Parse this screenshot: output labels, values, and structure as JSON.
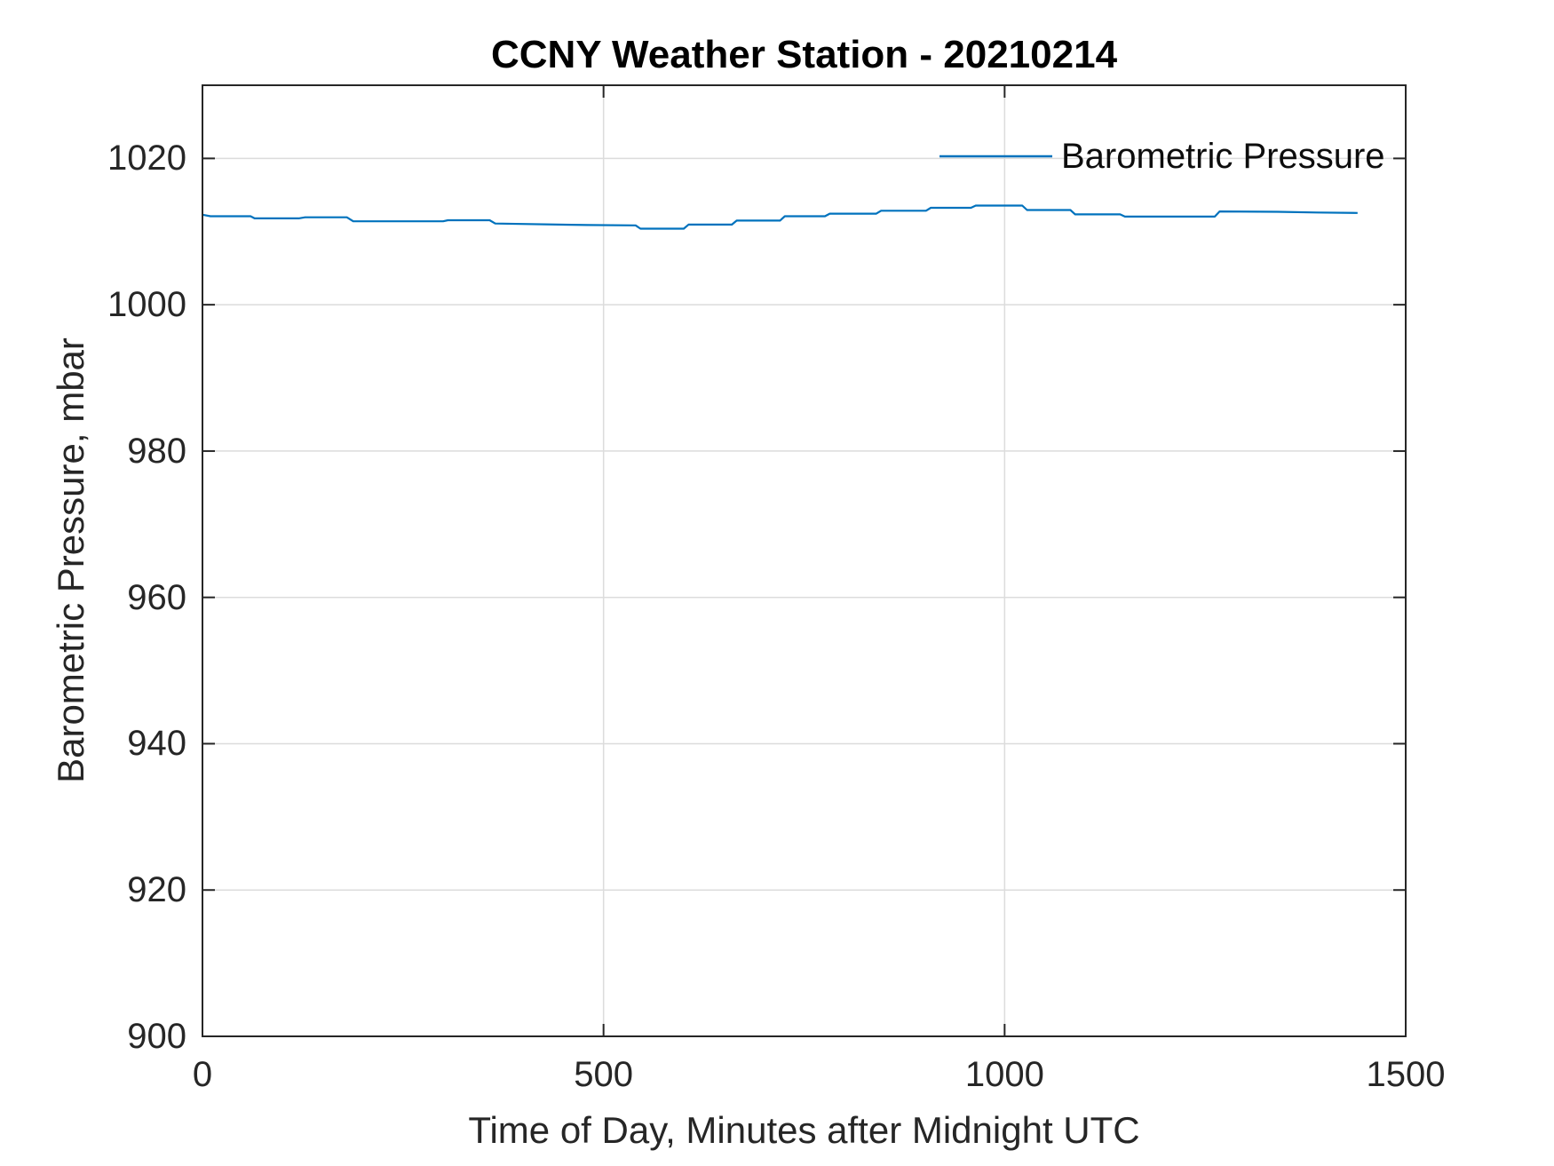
{
  "figure": {
    "title": "CCNY Weather Station - 20210214",
    "background": "#ffffff"
  },
  "legend": {
    "label": "Barometric Pressure",
    "position": "top-right-inside",
    "box": false
  },
  "colors": {
    "line": "#0072BD",
    "axis": "#262626",
    "grid": "#dcdcdc",
    "title_text": "#000000"
  },
  "chart_data": {
    "type": "line",
    "title": "CCNY Weather Station - 20210214",
    "xlabel": "Time of Day, Minutes after Midnight UTC",
    "ylabel": "Barometric Pressure, mbar",
    "xlim": [
      0,
      1500
    ],
    "ylim": [
      900,
      1030
    ],
    "xticks": [
      0,
      500,
      1000,
      1500
    ],
    "yticks": [
      900,
      920,
      940,
      960,
      980,
      1000,
      1020
    ],
    "grid": true,
    "legend_position": "top-right-inside",
    "series": [
      {
        "name": "Barometric Pressure",
        "color": "#0072BD",
        "x": [
          0,
          10,
          60,
          65,
          120,
          128,
          180,
          188,
          300,
          306,
          358,
          365,
          480,
          540,
          546,
          600,
          606,
          660,
          666,
          720,
          726,
          776,
          782,
          840,
          846,
          902,
          908,
          958,
          964,
          1022,
          1028,
          1082,
          1088,
          1144,
          1150,
          1262,
          1268,
          1340,
          1390,
          1440
        ],
        "y": [
          1012.3,
          1012.1,
          1012.1,
          1011.8,
          1011.8,
          1011.95,
          1011.95,
          1011.4,
          1011.4,
          1011.55,
          1011.55,
          1011.1,
          1010.9,
          1010.85,
          1010.4,
          1010.4,
          1010.95,
          1010.95,
          1011.5,
          1011.5,
          1012.1,
          1012.1,
          1012.45,
          1012.45,
          1012.85,
          1012.85,
          1013.25,
          1013.25,
          1013.55,
          1013.55,
          1012.95,
          1012.95,
          1012.35,
          1012.35,
          1012.05,
          1012.05,
          1012.75,
          1012.7,
          1012.6,
          1012.55
        ]
      }
    ]
  }
}
